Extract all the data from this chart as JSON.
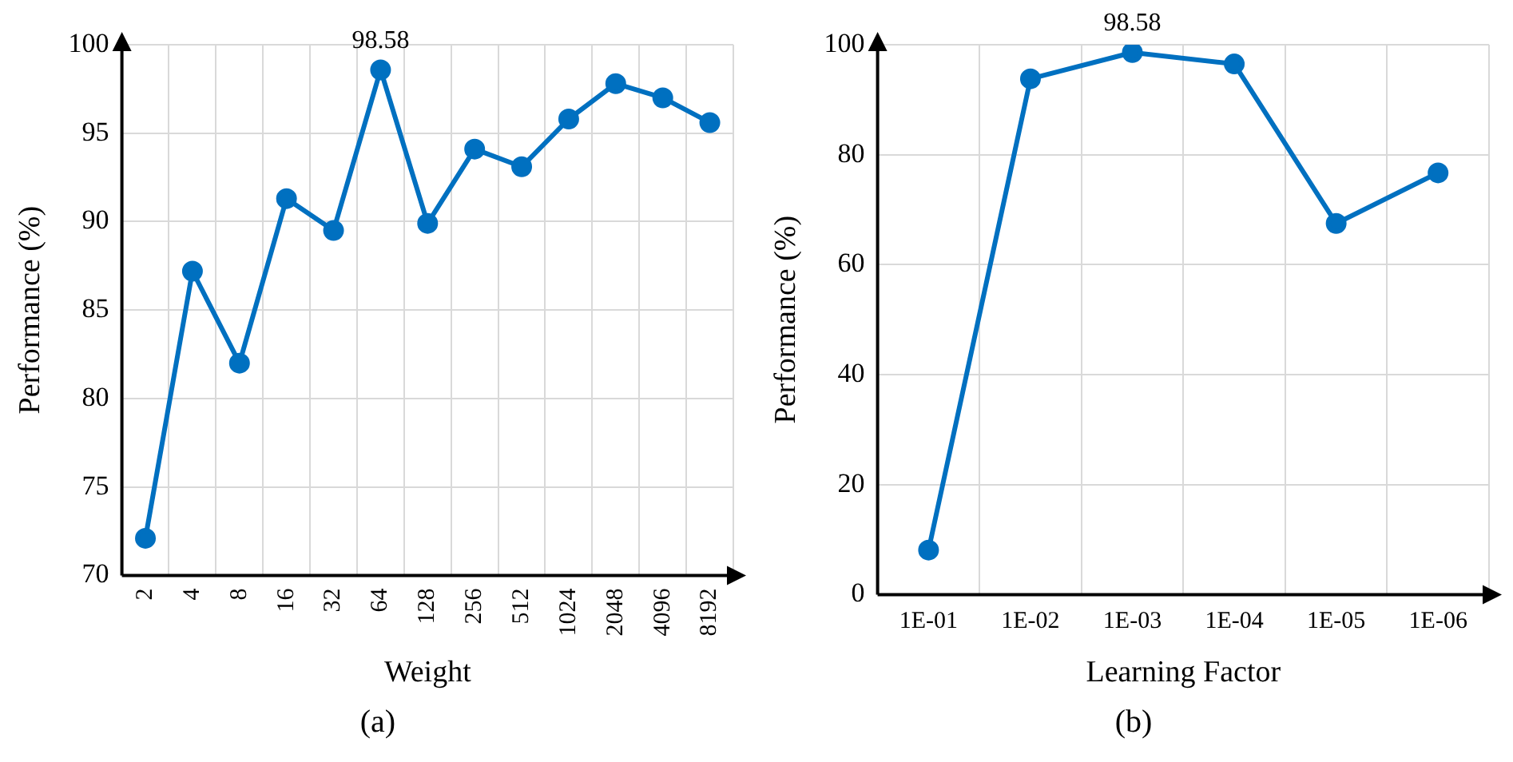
{
  "chart_data": [
    {
      "type": "line",
      "xlabel": "Weight",
      "ylabel": "Performance (%)",
      "categories": [
        "2",
        "4",
        "8",
        "16",
        "32",
        "64",
        "128",
        "256",
        "512",
        "1024",
        "2048",
        "4096",
        "8192"
      ],
      "series": [
        {
          "color": "#0070c0",
          "values": [
            72.1,
            87.2,
            82.0,
            91.3,
            89.5,
            98.58,
            89.9,
            94.1,
            93.1,
            95.8,
            97.8,
            97.0,
            95.6
          ]
        }
      ],
      "ylim": [
        70,
        100
      ],
      "yticks": [
        70,
        75,
        80,
        85,
        90,
        95,
        100
      ],
      "grid": true,
      "marker": "circle",
      "line_style": "solid",
      "legend": false,
      "annotations": [
        {
          "text": "98.58",
          "x": "64",
          "y": 98.58
        },
        "(a)"
      ]
    },
    {
      "type": "line",
      "xlabel": "Learning Factor",
      "ylabel": "Performance (%)",
      "categories": [
        "1E-01",
        "1E-02",
        "1E-03",
        "1E-04",
        "1E-05",
        "1E-06"
      ],
      "series": [
        {
          "color": "#0070c0",
          "values": [
            8.1,
            93.8,
            98.58,
            96.5,
            67.5,
            76.7
          ]
        }
      ],
      "ylim": [
        0,
        100
      ],
      "yticks": [
        0,
        20,
        40,
        60,
        80,
        100
      ],
      "grid": true,
      "marker": "circle",
      "line_style": "solid",
      "legend": false,
      "annotations": [
        {
          "text": "98.58",
          "x": "1E-03",
          "y": 98.58
        },
        "(b)"
      ]
    }
  ]
}
